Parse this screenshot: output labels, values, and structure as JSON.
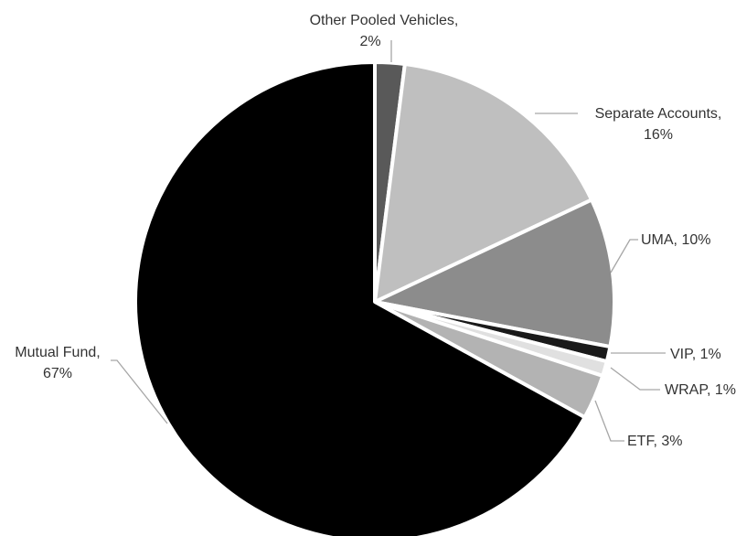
{
  "chart_data": {
    "type": "pie",
    "title": "",
    "slices": [
      {
        "label": "Other Pooled Vehicles",
        "value": 2,
        "display": "2%",
        "color": "#595959"
      },
      {
        "label": "Separate Accounts",
        "value": 16,
        "display": "16%",
        "color": "#bfbfbf"
      },
      {
        "label": "UMA",
        "value": 10,
        "display": "10%",
        "color": "#8c8c8c"
      },
      {
        "label": "VIP",
        "value": 1,
        "display": "1%",
        "color": "#1a1a1a"
      },
      {
        "label": "WRAP",
        "value": 1,
        "display": "1%",
        "color": "#e0e0e0"
      },
      {
        "label": "ETF",
        "value": 3,
        "display": "3%",
        "color": "#b3b3b3"
      },
      {
        "label": "Mutual Fund",
        "value": 67,
        "display": "67%",
        "color": "#000000"
      }
    ],
    "label_texts": {
      "other_line1": "Other Pooled Vehicles,",
      "other_line2": "2%",
      "separate_line1": "Separate Accounts,",
      "separate_line2": "16%",
      "uma": "UMA, 10%",
      "vip": "VIP, 1%",
      "wrap": "WRAP, 1%",
      "etf": "ETF, 3%",
      "mutual_line1": "Mutual Fund,",
      "mutual_line2": "67%"
    },
    "leader_color": "#a6a6a6",
    "border_color": "#ffffff"
  }
}
